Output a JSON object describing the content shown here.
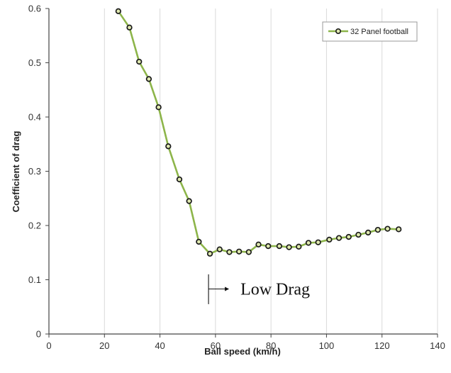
{
  "chart_data": {
    "type": "line",
    "title": "",
    "xlabel": "Ball speed (km/h)",
    "ylabel": "Coefficient of drag",
    "xlim": [
      0,
      140
    ],
    "ylim": [
      0,
      0.6
    ],
    "x_ticks": [
      0,
      20,
      40,
      60,
      80,
      100,
      120,
      140
    ],
    "y_ticks": [
      0,
      0.1,
      0.2,
      0.3,
      0.4,
      0.5,
      0.6
    ],
    "x_tick_labels": [
      "0",
      "20",
      "40",
      "60",
      "80",
      "100",
      "120",
      "140"
    ],
    "y_tick_labels": [
      "0",
      "0.1",
      "0.2",
      "0.3",
      "0.4",
      "0.5",
      "0.6"
    ],
    "grid": "vertical",
    "legend_position": "top-right",
    "series": [
      {
        "name": "32 Panel football",
        "color": "#8db54a",
        "marker_edge": "#1a1a1a",
        "marker_fill": "#dfe8b0",
        "x": [
          25,
          29,
          32.5,
          36,
          39.5,
          43,
          47,
          50.5,
          54,
          58,
          61.5,
          65,
          68.5,
          72,
          75.5,
          79,
          83,
          86.5,
          90,
          93.5,
          97,
          101,
          104.5,
          108,
          111.5,
          115,
          118.5,
          122,
          126
        ],
        "y": [
          0.595,
          0.565,
          0.502,
          0.47,
          0.418,
          0.346,
          0.285,
          0.245,
          0.17,
          0.148,
          0.156,
          0.151,
          0.152,
          0.151,
          0.165,
          0.162,
          0.162,
          0.16,
          0.161,
          0.168,
          0.169,
          0.174,
          0.177,
          0.179,
          0.183,
          0.187,
          0.192,
          0.194,
          0.193
        ]
      }
    ],
    "annotation": {
      "text": "Low Drag",
      "x": 57.5,
      "y_range": [
        0.055,
        0.11
      ],
      "arrow_y": 0.083
    }
  }
}
